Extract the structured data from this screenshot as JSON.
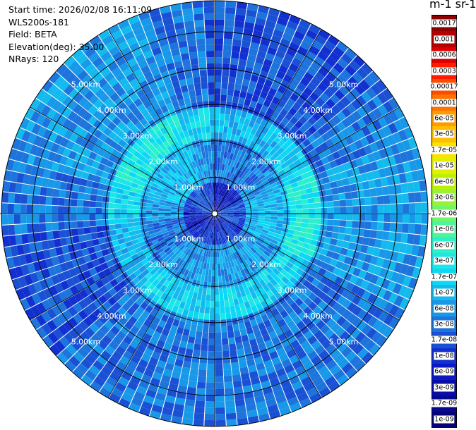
{
  "info": {
    "start_time": "Start time: 2026/02/08 16:11:09",
    "instrument": "WLS200s-181",
    "field": "Field: BETA",
    "elevation": "Elevation(deg): 35.00",
    "nrays": "NRays: 120"
  },
  "colorbar": {
    "title": "m-1 sr-1",
    "labels": [
      "0.0017",
      "0.001",
      "0.0006",
      "0.0003",
      "0.00017",
      "0.0001",
      "6e-05",
      "3e-05",
      "1.7e-05",
      "1e-05",
      "6e-06",
      "3e-06",
      "1.7e-06",
      "1e-06",
      "6e-07",
      "3e-07",
      "1.7e-07",
      "1e-07",
      "6e-08",
      "3e-08",
      "1.7e-08",
      "1e-08",
      "6e-09",
      "3e-09",
      "1.7e-09",
      "1e-09"
    ],
    "colors": [
      "#8b0000",
      "#b40000",
      "#dc0000",
      "#ff1a00",
      "#ff4b00",
      "#ff7300",
      "#ff9a00",
      "#ffbe00",
      "#fbe200",
      "#e2f000",
      "#bdf000",
      "#98f236",
      "#6ef56a",
      "#4cf59c",
      "#2ef0c8",
      "#1ce6e6",
      "#0ad8f4",
      "#14baee",
      "#1898e8",
      "#1c74dc",
      "#1a50d4",
      "#1230d0",
      "#0c18c0",
      "#080ca8",
      "#060890",
      "#040478"
    ]
  },
  "chart_data": {
    "type": "heatmap",
    "projection": "polar-ppi",
    "nrays": 120,
    "elevation_deg": 35.0,
    "range_rings_km": [
      1,
      2,
      3,
      4,
      5
    ],
    "ring_labels": [
      "1.00km",
      "2.00km",
      "3.00km",
      "4.00km",
      "5.00km"
    ],
    "max_range_km": 5.85,
    "colormap": "jet-like",
    "background_colormap": [
      "#1c6fe6",
      "#2b86ea",
      "#3a9bec",
      "#1f5fd8",
      "#4aaaf0",
      "#1a4ed0"
    ],
    "region_levels": [
      {
        "range_km": [
          0.0,
          0.9
        ],
        "level": "1e-08"
      },
      {
        "range_km": [
          0.9,
          2.0
        ],
        "level": "6e-08"
      },
      {
        "range_km": [
          2.0,
          2.9
        ],
        "level": "1.7e-07"
      },
      {
        "range_km": [
          2.9,
          5.85
        ],
        "level": "3e-08"
      }
    ]
  }
}
